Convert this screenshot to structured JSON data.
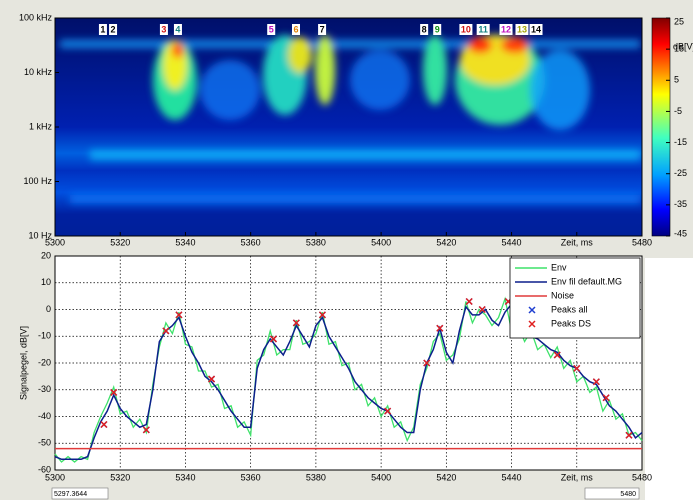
{
  "chart_data": [
    {
      "type": "spectrogram",
      "xlim": [
        5300,
        5480
      ],
      "xticks": [
        5300,
        5320,
        5340,
        5360,
        5380,
        5400,
        5420,
        5440,
        {
          "value": 5460,
          "label": "Zeit, ms"
        },
        5480
      ],
      "ylim": [
        10,
        100000
      ],
      "log_y": true,
      "yticks": [
        {
          "value": 10,
          "label": "10 Hz"
        },
        {
          "value": 100,
          "label": "100 Hz"
        },
        {
          "value": 1000,
          "label": "1 kHz"
        },
        {
          "value": 10000,
          "label": "10 kHz"
        },
        {
          "value": 100000,
          "label": "100 kHz"
        }
      ],
      "colorbar": {
        "label": "dB[V]",
        "clim": [
          -45,
          25
        ],
        "ticks": [
          25,
          15,
          5,
          -5,
          -15,
          -25,
          -35,
          -45
        ]
      },
      "markers": {
        "labels": [
          "1",
          "2",
          "3",
          "4",
          "5",
          "6",
          "7",
          "8",
          "9",
          "10",
          "11",
          "12",
          "13",
          "14"
        ],
        "x": [
          5314.7,
          5317.8,
          5333.4,
          5337.7,
          5366.3,
          5373.9,
          5381.9,
          5413.2,
          5417.2,
          5426,
          5431.3,
          5438.3,
          5443.2,
          5447.5
        ],
        "colors": [
          "#000000",
          "#000000",
          "#d01010",
          "#108080",
          "#c010c0",
          "#e08000",
          "#000000",
          "#000000",
          "#109010",
          "#d01010",
          "#108080",
          "#c010c0",
          "#a0a000",
          "#000000"
        ]
      }
    },
    {
      "type": "line",
      "ylabel": "Signalpegel, dB[V]",
      "xlim": [
        5300,
        5480
      ],
      "xticks": [
        5300,
        5320,
        5340,
        5360,
        5380,
        5400,
        5420,
        5440,
        {
          "value": 5460,
          "label": "Zeit, ms"
        },
        5480
      ],
      "ylim": [
        -60,
        20
      ],
      "yticks": [
        -60,
        -50,
        -40,
        -30,
        -20,
        -10,
        0,
        10,
        20
      ],
      "grid": true,
      "legend": "upper right",
      "x": [
        5300,
        5302,
        5304,
        5306,
        5308,
        5310,
        5312,
        5314,
        5316,
        5318,
        5320,
        5322,
        5324,
        5326,
        5328,
        5330,
        5332,
        5334,
        5336,
        5338,
        5340,
        5342,
        5344,
        5346,
        5348,
        5350,
        5352,
        5354,
        5356,
        5358,
        5360,
        5362,
        5364,
        5366,
        5368,
        5370,
        5372,
        5374,
        5376,
        5378,
        5380,
        5382,
        5384,
        5386,
        5388,
        5390,
        5392,
        5394,
        5396,
        5398,
        5400,
        5402,
        5404,
        5406,
        5408,
        5410,
        5412,
        5414,
        5416,
        5418,
        5420,
        5422,
        5424,
        5426,
        5428,
        5430,
        5432,
        5434,
        5436,
        5438,
        5440,
        5442,
        5444,
        5446,
        5448,
        5450,
        5452,
        5454,
        5456,
        5458,
        5460,
        5462,
        5464,
        5466,
        5468,
        5470,
        5472,
        5474,
        5476,
        5478,
        5480
      ],
      "series": [
        {
          "name": "Env",
          "color": "#3ee26a",
          "values": [
            -54,
            -57,
            -55,
            -57,
            -55,
            -56,
            -46,
            -40,
            -35,
            -29,
            -39,
            -38,
            -44,
            -41,
            -46,
            -28,
            -14,
            -5,
            -9,
            -1,
            -13,
            -14,
            -23,
            -23,
            -29,
            -28,
            -37,
            -36,
            -44,
            -42,
            -47,
            -19,
            -17,
            -8,
            -17,
            -15,
            -15,
            -4,
            -13,
            -12,
            -9,
            -1,
            -13,
            -12,
            -21,
            -20,
            -30,
            -28,
            -36,
            -33,
            -40,
            -36,
            -44,
            -42,
            -49,
            -44,
            -28,
            -22,
            -12,
            -9,
            -19,
            -17,
            -11,
            3,
            -5,
            0,
            -2,
            -6,
            -3,
            4,
            -8,
            -6,
            -12,
            -8,
            -15,
            -13,
            -18,
            -14,
            -22,
            -19,
            -27,
            -25,
            -31,
            -29,
            -38,
            -34,
            -41,
            -39,
            -47,
            -46,
            -49
          ]
        },
        {
          "name": "Env fil default.MG",
          "color": "#0c1f8c",
          "values": [
            -55,
            -56,
            -56,
            -56,
            -56,
            -55,
            -48,
            -42,
            -38,
            -32,
            -37,
            -40,
            -42,
            -44,
            -43,
            -30,
            -12,
            -8,
            -6,
            -3,
            -10,
            -16,
            -20,
            -25,
            -27,
            -30,
            -34,
            -38,
            -41,
            -44,
            -44,
            -22,
            -15,
            -11,
            -14,
            -17,
            -12,
            -6,
            -10,
            -14,
            -6,
            -3,
            -10,
            -14,
            -18,
            -22,
            -27,
            -30,
            -33,
            -35,
            -37,
            -38,
            -41,
            -44,
            -46,
            -46,
            -30,
            -20,
            -15,
            -7,
            -16,
            -20,
            -8,
            1,
            -2,
            -2,
            0,
            -4,
            -6,
            -1,
            2,
            -5,
            -8,
            -10,
            -11,
            -13,
            -15,
            -16,
            -19,
            -21,
            -22,
            -25,
            -27,
            -28,
            -32,
            -36,
            -38,
            -41,
            -44,
            -48,
            -46
          ]
        },
        {
          "name": "Noise",
          "color": "#e03a3a",
          "x": [
            5300,
            5480
          ],
          "values": [
            -52,
            -52
          ]
        },
        {
          "name": "Peaks all",
          "color": "#1f3fd0",
          "marker": "x",
          "x": [
            5315,
            5318,
            5328,
            5334,
            5338,
            5348,
            5367,
            5374,
            5382,
            5402,
            5414,
            5418,
            5427,
            5431,
            5439,
            5454,
            5460,
            5466,
            5469,
            5476
          ],
          "values": [
            -43,
            -31,
            -45,
            -8,
            -2,
            -26,
            -11,
            -5,
            -2,
            -38,
            -20,
            -7,
            3,
            0,
            3,
            -17,
            -22,
            -27,
            -33,
            -47
          ]
        },
        {
          "name": "Peaks DS",
          "color": "#e02020",
          "marker": "x",
          "x": [
            5315,
            5318,
            5328,
            5334,
            5338,
            5348,
            5367,
            5374,
            5382,
            5402,
            5414,
            5418,
            5427,
            5431,
            5439,
            5454,
            5460,
            5466,
            5469,
            5476
          ],
          "values": [
            -43,
            -31,
            -45,
            -8,
            -2,
            -26,
            -11,
            -5,
            -2,
            -38,
            -20,
            -7,
            3,
            0,
            3,
            -17,
            -22,
            -27,
            -33,
            -47
          ]
        }
      ]
    }
  ],
  "status": {
    "left": "5297.3644",
    "right": "5480"
  }
}
